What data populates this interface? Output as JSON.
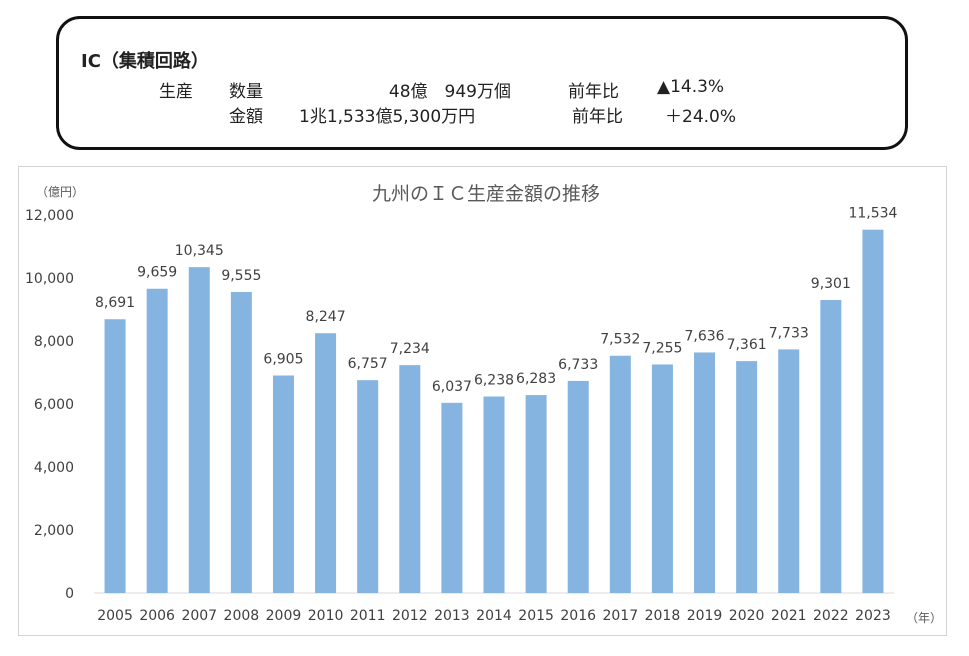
{
  "summary": {
    "title": "IC（集積回路）",
    "category": "生産",
    "rows": [
      {
        "label": "数量",
        "value": "48億　949万個",
        "compare_label": "前年比",
        "compare_value": "▲14.3%"
      },
      {
        "label": "金額",
        "value": "1兆1,533億5,300万円",
        "compare_label": "前年比",
        "compare_value": "＋24.0%"
      }
    ]
  },
  "chart_data": {
    "type": "bar",
    "title": "九州のＩＣ生産金額の推移",
    "ylabel": "（億円）",
    "xlabel": "（年）",
    "categories": [
      "2005",
      "2006",
      "2007",
      "2008",
      "2009",
      "2010",
      "2011",
      "2012",
      "2013",
      "2014",
      "2015",
      "2016",
      "2017",
      "2018",
      "2019",
      "2020",
      "2021",
      "2022",
      "2023"
    ],
    "values": [
      8691,
      9659,
      10345,
      9555,
      6905,
      8247,
      6757,
      7234,
      6037,
      6238,
      6283,
      6733,
      7532,
      7255,
      7636,
      7361,
      7733,
      9301,
      11534
    ],
    "value_labels": [
      "8,691",
      "9,659",
      "10,345",
      "9,555",
      "6,905",
      "8,247",
      "6,757",
      "7,234",
      "6,037",
      "6,238",
      "6,283",
      "6,733",
      "7,532",
      "7,255",
      "7,636",
      "7,361",
      "7,733",
      "9,301",
      "11,534"
    ],
    "ylim": [
      0,
      12000
    ],
    "yticks": [
      0,
      2000,
      4000,
      6000,
      8000,
      10000,
      12000
    ],
    "ytick_labels": [
      "0",
      "2,000",
      "4,000",
      "6,000",
      "8,000",
      "10,000",
      "12,000"
    ],
    "bar_color": "#85b4e0",
    "grid": false,
    "legend": "none"
  }
}
